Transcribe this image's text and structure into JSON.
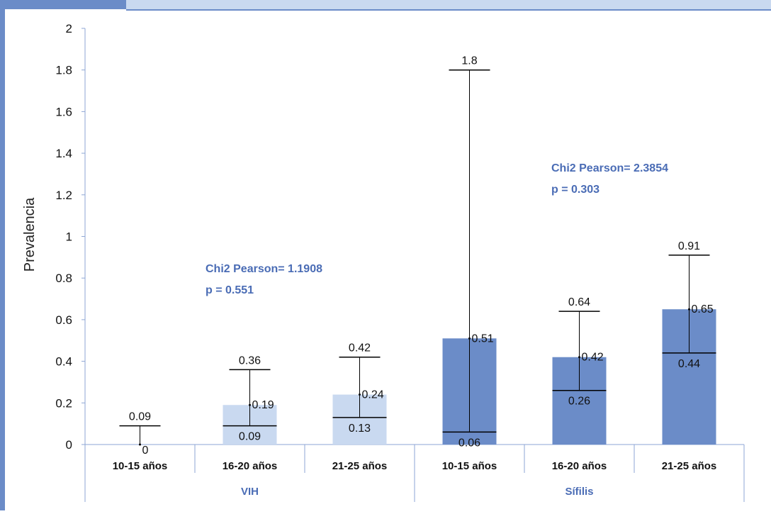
{
  "colors": {
    "frame": "#6b8cc8",
    "vih_bar": "#c9d9f0",
    "sifilis_bar": "#6b8cc8",
    "annotation": "#4a6cb5",
    "axis": "#8ea6d4"
  },
  "chart_data": {
    "type": "bar",
    "title": "",
    "xlabel": "",
    "ylabel": "Prevalencia",
    "ylim": [
      0,
      2
    ],
    "yticks": [
      "0",
      "0.2",
      "0.4",
      "0.6",
      "0.8",
      "1",
      "1.2",
      "1.4",
      "1.6",
      "1.8",
      "2"
    ],
    "grid": false,
    "groups": [
      {
        "label": "VIH",
        "categories": [
          "10-15 años",
          "16-20 años",
          "21-25 años"
        ],
        "values": [
          0,
          0.19,
          0.24
        ],
        "lower": [
          0,
          0.09,
          0.13
        ],
        "upper": [
          0.09,
          0.36,
          0.42
        ],
        "value_labels": [
          "0",
          "0.19",
          "0.24"
        ],
        "lower_labels": [
          "",
          "0.09",
          "0.13"
        ],
        "upper_labels": [
          "0.09",
          "0.36",
          "0.42"
        ],
        "annotation": [
          "Chi2 Pearson= 1.1908",
          "p = 0.551"
        ]
      },
      {
        "label": "Sífilis",
        "categories": [
          "10-15 años",
          "16-20 años",
          "21-25 años"
        ],
        "values": [
          0.51,
          0.42,
          0.65
        ],
        "lower": [
          0.06,
          0.26,
          0.44
        ],
        "upper": [
          1.8,
          0.64,
          0.91
        ],
        "value_labels": [
          "0.51",
          "0.42",
          "0.65"
        ],
        "lower_labels": [
          "0.06",
          "0.26",
          "0.44"
        ],
        "upper_labels": [
          "1.8",
          "0.64",
          "0.91"
        ],
        "annotation": [
          "Chi2 Pearson= 2.3854",
          "p = 0.303"
        ]
      }
    ]
  }
}
